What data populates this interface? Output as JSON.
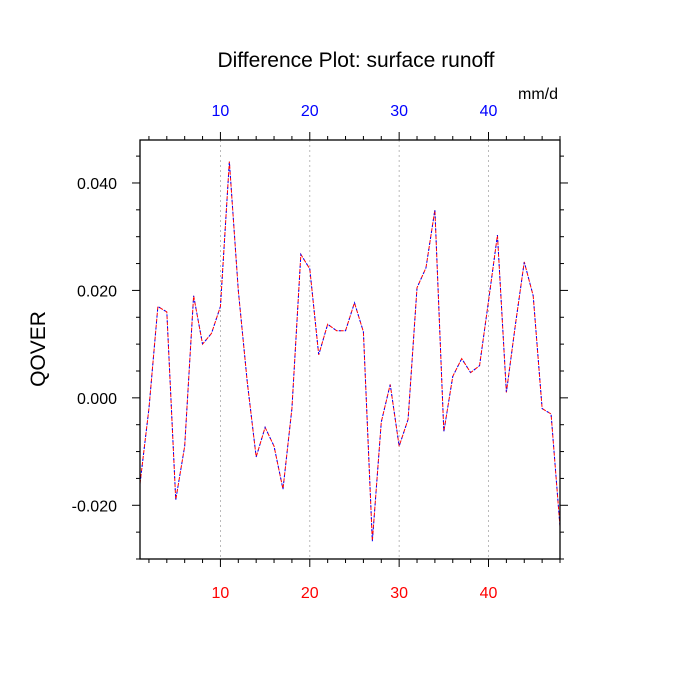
{
  "chart_data": {
    "type": "line",
    "title": "Difference Plot: surface runoff",
    "ylabel": "QOVER",
    "units": "mm/d",
    "xlim": [
      1,
      48
    ],
    "ylim": [
      -0.03,
      0.048
    ],
    "x_ticks": [
      10,
      20,
      30,
      40
    ],
    "x_tick_labels": [
      "10",
      "20",
      "30",
      "40"
    ],
    "y_ticks": [
      0.04,
      0.02,
      0.0,
      -0.02
    ],
    "y_tick_labels": [
      "0.040",
      "0.020",
      "0.000",
      "-0.020"
    ],
    "top_tick_color": "#0000ff",
    "bottom_tick_color": "#ff0000",
    "grid": "vertical dashed at major x ticks",
    "series": [
      {
        "color": "#ff0000",
        "overlay_color": "#0000ff",
        "style": "dashed",
        "x": [
          1,
          2,
          3,
          4,
          5,
          6,
          7,
          8,
          9,
          10,
          11,
          12,
          13,
          14,
          15,
          16,
          17,
          18,
          19,
          20,
          21,
          22,
          23,
          24,
          25,
          26,
          27,
          28,
          29,
          30,
          31,
          32,
          33,
          34,
          35,
          36,
          37,
          38,
          39,
          40,
          41,
          42,
          43,
          44,
          45,
          46,
          47,
          48
        ],
        "values": [
          -0.016,
          -0.002,
          0.017,
          0.016,
          -0.019,
          -0.009,
          0.019,
          0.01,
          0.012,
          0.017,
          0.044,
          0.02,
          0.003,
          -0.011,
          -0.0055,
          -0.009,
          -0.017,
          -0.002,
          0.0267,
          0.024,
          0.008,
          0.0137,
          0.0125,
          0.0125,
          0.0177,
          0.0123,
          -0.0267,
          -0.0045,
          0.0025,
          -0.009,
          -0.004,
          0.0205,
          0.0242,
          0.035,
          -0.0063,
          0.004,
          0.0073,
          0.0047,
          0.006,
          0.018,
          0.0303,
          0.001,
          0.0135,
          0.0253,
          0.019,
          -0.002,
          -0.003,
          -0.024
        ]
      }
    ]
  }
}
